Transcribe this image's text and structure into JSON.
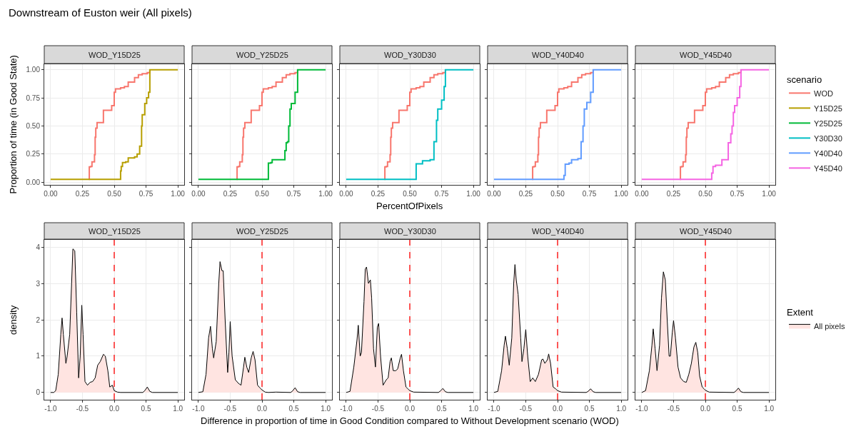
{
  "chart_data": [
    {
      "type": "step",
      "title": "WOD_Y15D25",
      "annotations": [
        "Downstream of Euston weir (All pixels)"
      ],
      "ylabel": "Proportion of time (in Good State)",
      "legend": "right",
      "legend_title": "scenario",
      "grid": true,
      "xlim": [
        -0.05,
        1.05
      ],
      "ylim": [
        -0.024,
        1.049
      ],
      "xticks": [
        {
          "value": 0,
          "label": "0.00"
        },
        {
          "value": 0.25,
          "label": "0.25"
        },
        {
          "value": 0.5,
          "label": "0.50"
        },
        {
          "value": 0.75,
          "label": "0.75"
        },
        {
          "value": 1,
          "label": "1.00"
        }
      ],
      "yticks": [
        {
          "value": 0,
          "label": "0.00"
        },
        {
          "value": 0.25,
          "label": "0.25"
        },
        {
          "value": 0.5,
          "label": "0.50"
        },
        {
          "value": 0.75,
          "label": "0.75"
        },
        {
          "value": 1,
          "label": "1.00"
        }
      ],
      "series": [
        {
          "name": "WOD",
          "color": "#f8766d",
          "x": [
            0.3,
            0.304,
            0.315,
            0.325,
            0.345,
            0.35,
            0.355,
            0.365,
            0.415,
            0.48,
            0.5,
            0.51,
            0.55,
            0.58,
            0.61,
            0.66,
            0.69,
            0.72,
            0.76,
            0.78
          ],
          "values": [
            0.025,
            0.136,
            0.14,
            0.18,
            0.245,
            0.4,
            0.48,
            0.53,
            0.64,
            0.68,
            0.8,
            0.83,
            0.84,
            0.85,
            0.89,
            0.93,
            0.955,
            0.965,
            0.975,
            1.0
          ]
        },
        {
          "name": "Y15D25",
          "color": "#b79f00",
          "x": [
            0,
            0.55,
            0.555,
            0.565,
            0.59,
            0.61,
            0.66,
            0.68,
            0.7,
            0.715,
            0.72,
            0.74,
            0.755,
            0.77,
            0.78,
            1.0
          ],
          "values": [
            0.025,
            0.1,
            0.14,
            0.175,
            0.18,
            0.215,
            0.225,
            0.25,
            0.32,
            0.5,
            0.6,
            0.7,
            0.75,
            0.8,
            1.0,
            1.0
          ]
        }
      ]
    },
    {
      "type": "step",
      "title": "WOD_Y25D25",
      "legend": "right",
      "tick_labels": "x",
      "grid": true,
      "xlim": [
        -0.05,
        1.05
      ],
      "ylim": [
        -0.024,
        1.049
      ],
      "xticks": [
        {
          "value": 0,
          "label": "0.00"
        },
        {
          "value": 0.25,
          "label": "0.25"
        },
        {
          "value": 0.5,
          "label": "0.50"
        },
        {
          "value": 0.75,
          "label": "0.75"
        },
        {
          "value": 1,
          "label": "1.00"
        }
      ],
      "yticks": [
        {
          "value": 0,
          "label": "0.00"
        },
        {
          "value": 0.25,
          "label": "0.25"
        },
        {
          "value": 0.5,
          "label": "0.50"
        },
        {
          "value": 0.75,
          "label": "0.75"
        },
        {
          "value": 1,
          "label": "1.00"
        }
      ],
      "series": [
        {
          "name": "WOD",
          "color": "#f8766d",
          "x": [
            0.3,
            0.304,
            0.315,
            0.325,
            0.345,
            0.35,
            0.355,
            0.365,
            0.415,
            0.48,
            0.5,
            0.51,
            0.55,
            0.58,
            0.61,
            0.66,
            0.69,
            0.72,
            0.76,
            0.78
          ],
          "values": [
            0.025,
            0.136,
            0.14,
            0.18,
            0.245,
            0.4,
            0.48,
            0.53,
            0.64,
            0.68,
            0.8,
            0.83,
            0.84,
            0.85,
            0.89,
            0.93,
            0.955,
            0.965,
            0.975,
            1.0
          ]
        },
        {
          "name": "Y25D25",
          "color": "#00ba38",
          "x": [
            0,
            0.55,
            0.57,
            0.58,
            0.68,
            0.69,
            0.7,
            0.71,
            0.72,
            0.73,
            0.76,
            0.78,
            1.0
          ],
          "values": [
            0.025,
            0.17,
            0.175,
            0.2,
            0.28,
            0.35,
            0.36,
            0.5,
            0.65,
            0.7,
            0.8,
            1.0,
            1.0
          ]
        }
      ]
    },
    {
      "type": "step",
      "title": "WOD_Y30D30",
      "xlabel": "PercentOfPixels",
      "legend": "right",
      "tick_labels": "x",
      "grid": true,
      "xlim": [
        -0.05,
        1.05
      ],
      "ylim": [
        -0.024,
        1.049
      ],
      "xticks": [
        {
          "value": 0,
          "label": "0.00"
        },
        {
          "value": 0.25,
          "label": "0.25"
        },
        {
          "value": 0.5,
          "label": "0.50"
        },
        {
          "value": 0.75,
          "label": "0.75"
        },
        {
          "value": 1,
          "label": "1.00"
        }
      ],
      "yticks": [
        {
          "value": 0,
          "label": "0.00"
        },
        {
          "value": 0.25,
          "label": "0.25"
        },
        {
          "value": 0.5,
          "label": "0.50"
        },
        {
          "value": 0.75,
          "label": "0.75"
        },
        {
          "value": 1,
          "label": "1.00"
        }
      ],
      "series": [
        {
          "name": "WOD",
          "color": "#f8766d",
          "x": [
            0.3,
            0.304,
            0.315,
            0.325,
            0.345,
            0.35,
            0.355,
            0.365,
            0.415,
            0.48,
            0.5,
            0.51,
            0.55,
            0.58,
            0.61,
            0.66,
            0.69,
            0.72,
            0.76,
            0.78
          ],
          "values": [
            0.025,
            0.136,
            0.14,
            0.18,
            0.245,
            0.4,
            0.48,
            0.53,
            0.64,
            0.68,
            0.8,
            0.83,
            0.84,
            0.85,
            0.89,
            0.93,
            0.955,
            0.965,
            0.975,
            1.0
          ]
        },
        {
          "name": "Y30D30",
          "color": "#00bfc4",
          "x": [
            0,
            0.55,
            0.6,
            0.66,
            0.69,
            0.71,
            0.72,
            0.75,
            0.77,
            0.78,
            1.0
          ],
          "values": [
            0.025,
            0.163,
            0.19,
            0.2,
            0.36,
            0.55,
            0.65,
            0.73,
            0.85,
            1.0,
            1.0
          ]
        }
      ]
    },
    {
      "type": "step",
      "title": "WOD_Y40D40",
      "legend": "right",
      "tick_labels": "x",
      "grid": true,
      "xlim": [
        -0.05,
        1.05
      ],
      "ylim": [
        -0.024,
        1.049
      ],
      "xticks": [
        {
          "value": 0,
          "label": "0.00"
        },
        {
          "value": 0.25,
          "label": "0.25"
        },
        {
          "value": 0.5,
          "label": "0.50"
        },
        {
          "value": 0.75,
          "label": "0.75"
        },
        {
          "value": 1,
          "label": "1.00"
        }
      ],
      "yticks": [
        {
          "value": 0,
          "label": "0.00"
        },
        {
          "value": 0.25,
          "label": "0.25"
        },
        {
          "value": 0.5,
          "label": "0.50"
        },
        {
          "value": 0.75,
          "label": "0.75"
        },
        {
          "value": 1,
          "label": "1.00"
        }
      ],
      "series": [
        {
          "name": "WOD",
          "color": "#f8766d",
          "x": [
            0.3,
            0.304,
            0.315,
            0.325,
            0.345,
            0.35,
            0.355,
            0.365,
            0.415,
            0.48,
            0.5,
            0.51,
            0.55,
            0.58,
            0.61,
            0.66,
            0.69,
            0.72,
            0.76,
            0.78
          ],
          "values": [
            0.025,
            0.136,
            0.14,
            0.18,
            0.245,
            0.4,
            0.48,
            0.53,
            0.64,
            0.68,
            0.8,
            0.83,
            0.84,
            0.85,
            0.89,
            0.93,
            0.955,
            0.965,
            0.975,
            1.0
          ]
        },
        {
          "name": "Y40D40",
          "color": "#619cff",
          "x": [
            0,
            0.55,
            0.56,
            0.59,
            0.61,
            0.66,
            0.685,
            0.7,
            0.71,
            0.73,
            0.76,
            0.78,
            1.0
          ],
          "values": [
            0.025,
            0.06,
            0.16,
            0.17,
            0.2,
            0.21,
            0.36,
            0.5,
            0.65,
            0.71,
            0.8,
            1.0,
            1.0
          ]
        }
      ]
    },
    {
      "type": "step",
      "title": "WOD_Y45D40",
      "legend": "right",
      "tick_labels": "x",
      "grid": true,
      "xlim": [
        -0.05,
        1.05
      ],
      "ylim": [
        -0.024,
        1.049
      ],
      "xticks": [
        {
          "value": 0,
          "label": "0.00"
        },
        {
          "value": 0.25,
          "label": "0.25"
        },
        {
          "value": 0.5,
          "label": "0.50"
        },
        {
          "value": 0.75,
          "label": "0.75"
        },
        {
          "value": 1,
          "label": "1.00"
        }
      ],
      "yticks": [
        {
          "value": 0,
          "label": "0.00"
        },
        {
          "value": 0.25,
          "label": "0.25"
        },
        {
          "value": 0.5,
          "label": "0.50"
        },
        {
          "value": 0.75,
          "label": "0.75"
        },
        {
          "value": 1,
          "label": "1.00"
        }
      ],
      "series": [
        {
          "name": "WOD",
          "color": "#f8766d",
          "x": [
            0.3,
            0.304,
            0.315,
            0.325,
            0.345,
            0.35,
            0.355,
            0.365,
            0.415,
            0.48,
            0.5,
            0.51,
            0.55,
            0.58,
            0.61,
            0.66,
            0.69,
            0.72,
            0.76,
            0.78
          ],
          "values": [
            0.025,
            0.136,
            0.14,
            0.18,
            0.245,
            0.4,
            0.48,
            0.53,
            0.64,
            0.68,
            0.8,
            0.83,
            0.84,
            0.85,
            0.89,
            0.93,
            0.955,
            0.965,
            0.975,
            1.0
          ]
        },
        {
          "name": "Y45D40",
          "color": "#f564e3",
          "x": [
            0,
            0.55,
            0.56,
            0.58,
            0.63,
            0.68,
            0.7,
            0.71,
            0.72,
            0.73,
            0.75,
            0.77,
            0.78,
            1.0
          ],
          "values": [
            0.025,
            0.08,
            0.14,
            0.15,
            0.2,
            0.35,
            0.43,
            0.5,
            0.62,
            0.68,
            0.75,
            0.85,
            1.0,
            1.0
          ]
        }
      ]
    },
    {
      "type": "area",
      "title": "WOD_Y15D25",
      "ylabel": "density",
      "legend": "right",
      "legend_title": "Extent",
      "grid": true,
      "xlim": [
        -1.1,
        1.1
      ],
      "ylim": [
        -0.2,
        4.2
      ],
      "xticks": [
        {
          "value": -1,
          "label": "-1.0"
        },
        {
          "value": -0.5,
          "label": "-0.5"
        },
        {
          "value": 0,
          "label": "0.0"
        },
        {
          "value": 0.5,
          "label": "0.5"
        },
        {
          "value": 1,
          "label": "1.0"
        }
      ],
      "yticks": [
        0,
        1,
        2,
        3,
        4
      ],
      "ref_lines": [
        {
          "axis": "x",
          "value": 0,
          "color": "#ff0000",
          "line_style": "dashed"
        }
      ],
      "series": [
        {
          "name": "All pixels",
          "color": "#ffe4e1",
          "x": [
            -1,
            -0.95,
            -0.92,
            -0.88,
            -0.84,
            -0.82,
            -0.8,
            -0.76,
            -0.74,
            -0.7,
            -0.67,
            -0.65,
            -0.62,
            -0.59,
            -0.56,
            -0.535,
            -0.51,
            -0.49,
            -0.46,
            -0.42,
            -0.38,
            -0.34,
            -0.3,
            -0.26,
            -0.22,
            -0.17,
            -0.14,
            -0.1,
            -0.07,
            -0.03,
            0,
            0.05,
            0.1,
            0.45,
            0.48,
            0.52,
            0.56,
            0.6,
            1
          ],
          "values": [
            0,
            0,
            0.05,
            0.5,
            1.6,
            2.05,
            1.6,
            0.8,
            1.0,
            1.6,
            3.0,
            3.95,
            3.9,
            2.2,
            0.4,
            1.0,
            2.4,
            1.6,
            0.3,
            0.2,
            0.28,
            0.3,
            0.4,
            0.75,
            0.85,
            1.05,
            1.0,
            0.6,
            0.15,
            0.2,
            0.05,
            0.01,
            0,
            0,
            0.05,
            0.15,
            0.03,
            0,
            0
          ]
        }
      ]
    },
    {
      "type": "area",
      "title": "WOD_Y25D25",
      "tick_labels": "x",
      "grid": true,
      "xlim": [
        -1.1,
        1.1
      ],
      "ylim": [
        -0.2,
        4.2
      ],
      "xticks": [
        {
          "value": -1,
          "label": "-1.0"
        },
        {
          "value": -0.5,
          "label": "-0.5"
        },
        {
          "value": 0,
          "label": "0.0"
        },
        {
          "value": 0.5,
          "label": "0.5"
        },
        {
          "value": 1,
          "label": "1.0"
        }
      ],
      "yticks": [
        0,
        1,
        2,
        3,
        4
      ],
      "ref_lines": [
        {
          "axis": "x",
          "value": 0,
          "color": "#ff0000",
          "line_style": "dashed"
        }
      ],
      "series": [
        {
          "color": "#ffe4e1",
          "x": [
            -1,
            -0.93,
            -0.88,
            -0.84,
            -0.81,
            -0.78,
            -0.76,
            -0.72,
            -0.68,
            -0.66,
            -0.63,
            -0.61,
            -0.58,
            -0.54,
            -0.52,
            -0.5,
            -0.47,
            -0.42,
            -0.37,
            -0.33,
            -0.29,
            -0.27,
            -0.24,
            -0.21,
            -0.17,
            -0.14,
            -0.11,
            -0.07,
            -0.03,
            0,
            0.05,
            0.1,
            0.22,
            0.45,
            0.48,
            0.52,
            0.56,
            0.6,
            1
          ],
          "values": [
            0,
            0.02,
            0.5,
            1.5,
            1.82,
            1.2,
            0.95,
            1.4,
            3.0,
            3.6,
            3.35,
            3.35,
            2.0,
            0.55,
            1.1,
            1.95,
            1.0,
            0.35,
            0.25,
            0.2,
            0.7,
            0.97,
            0.7,
            0.55,
            0.95,
            1.13,
            0.9,
            0.2,
            0.12,
            0.07,
            0.01,
            0,
            0.01,
            0,
            0.04,
            0.13,
            0.02,
            0,
            0
          ]
        }
      ]
    },
    {
      "type": "area",
      "title": "WOD_Y30D30",
      "xlabel": "Difference in proportion of time in Good Condition compared to Without Development scenario (WOD)",
      "tick_labels": "x",
      "grid": true,
      "xlim": [
        -1.1,
        1.1
      ],
      "ylim": [
        -0.2,
        4.2
      ],
      "xticks": [
        {
          "value": -1,
          "label": "-1.0"
        },
        {
          "value": -0.5,
          "label": "-0.5"
        },
        {
          "value": 0,
          "label": "0.0"
        },
        {
          "value": 0.5,
          "label": "0.5"
        },
        {
          "value": 1,
          "label": "1.0"
        }
      ],
      "yticks": [
        0,
        1,
        2,
        3,
        4
      ],
      "ref_lines": [
        {
          "axis": "x",
          "value": 0,
          "color": "#ff0000",
          "line_style": "dashed"
        }
      ],
      "series": [
        {
          "color": "#ffe4e1",
          "x": [
            -1,
            -0.94,
            -0.88,
            -0.83,
            -0.81,
            -0.78,
            -0.76,
            -0.72,
            -0.7,
            -0.68,
            -0.65,
            -0.62,
            -0.6,
            -0.57,
            -0.54,
            -0.51,
            -0.49,
            -0.46,
            -0.42,
            -0.37,
            -0.34,
            -0.31,
            -0.29,
            -0.26,
            -0.22,
            -0.19,
            -0.15,
            -0.13,
            -0.1,
            -0.06,
            -0.03,
            0,
            0.06,
            0.45,
            0.48,
            0.52,
            0.56,
            0.6,
            1
          ],
          "values": [
            0,
            0.03,
            0.7,
            1.45,
            1.85,
            1.0,
            1.1,
            2.5,
            3.4,
            3.45,
            3.0,
            3.1,
            2.6,
            1.2,
            0.7,
            1.8,
            1.9,
            1.0,
            0.2,
            0.35,
            0.4,
            0.85,
            0.95,
            0.6,
            0.6,
            0.65,
            0.95,
            1.05,
            0.6,
            0.15,
            0.1,
            0.05,
            0.01,
            0,
            0.04,
            0.11,
            0.02,
            0,
            0
          ]
        }
      ]
    },
    {
      "type": "area",
      "title": "WOD_Y40D40",
      "tick_labels": "x",
      "grid": true,
      "xlim": [
        -1.1,
        1.1
      ],
      "ylim": [
        -0.2,
        4.2
      ],
      "xticks": [
        {
          "value": -1,
          "label": "-1.0"
        },
        {
          "value": -0.5,
          "label": "-0.5"
        },
        {
          "value": 0,
          "label": "0.0"
        },
        {
          "value": 0.5,
          "label": "0.5"
        },
        {
          "value": 1,
          "label": "1.0"
        }
      ],
      "yticks": [
        0,
        1,
        2,
        3,
        4
      ],
      "ref_lines": [
        {
          "axis": "x",
          "value": 0,
          "color": "#ff0000",
          "line_style": "dashed"
        }
      ],
      "series": [
        {
          "color": "#ffe4e1",
          "x": [
            -1,
            -0.94,
            -0.88,
            -0.84,
            -0.82,
            -0.79,
            -0.76,
            -0.72,
            -0.69,
            -0.67,
            -0.65,
            -0.62,
            -0.58,
            -0.56,
            -0.53,
            -0.5,
            -0.47,
            -0.43,
            -0.39,
            -0.35,
            -0.3,
            -0.25,
            -0.23,
            -0.2,
            -0.16,
            -0.14,
            -0.11,
            -0.07,
            -0.03,
            0,
            0.06,
            0.45,
            0.48,
            0.52,
            0.56,
            0.6,
            1
          ],
          "values": [
            0,
            0.03,
            0.6,
            1.3,
            1.55,
            1.2,
            0.75,
            1.5,
            3.0,
            3.52,
            3.1,
            2.7,
            1.5,
            0.85,
            1.2,
            1.73,
            1.0,
            0.3,
            0.4,
            0.3,
            0.5,
            0.9,
            0.92,
            0.8,
            0.9,
            1.06,
            0.8,
            0.15,
            0.1,
            0.05,
            0.01,
            0,
            0.03,
            0.1,
            0.02,
            0,
            0
          ]
        }
      ]
    },
    {
      "type": "area",
      "title": "WOD_Y45D40",
      "tick_labels": "x",
      "grid": true,
      "xlim": [
        -1.1,
        1.1
      ],
      "ylim": [
        -0.2,
        4.2
      ],
      "xticks": [
        {
          "value": -1,
          "label": "-1.0"
        },
        {
          "value": -0.5,
          "label": "-0.5"
        },
        {
          "value": 0,
          "label": "0.0"
        },
        {
          "value": 0.5,
          "label": "0.5"
        },
        {
          "value": 1,
          "label": "1.0"
        }
      ],
      "yticks": [
        0,
        1,
        2,
        3,
        4
      ],
      "ref_lines": [
        {
          "axis": "x",
          "value": 0,
          "color": "#ff0000",
          "line_style": "dashed"
        }
      ],
      "series": [
        {
          "color": "#ffe4e1",
          "x": [
            -1,
            -0.94,
            -0.88,
            -0.84,
            -0.82,
            -0.79,
            -0.76,
            -0.72,
            -0.69,
            -0.66,
            -0.63,
            -0.6,
            -0.57,
            -0.55,
            -0.52,
            -0.5,
            -0.47,
            -0.43,
            -0.39,
            -0.34,
            -0.3,
            -0.26,
            -0.22,
            -0.18,
            -0.15,
            -0.12,
            -0.09,
            -0.05,
            -0.02,
            0,
            0.06,
            0.45,
            0.48,
            0.52,
            0.56,
            0.6,
            1
          ],
          "values": [
            0,
            0.05,
            0.6,
            1.3,
            1.75,
            1.2,
            0.6,
            1.3,
            2.6,
            3.32,
            3.1,
            2.0,
            1.0,
            1.0,
            1.65,
            1.98,
            1.5,
            0.7,
            0.4,
            0.3,
            0.28,
            0.5,
            0.8,
            1.25,
            1.38,
            1.1,
            0.45,
            0.15,
            0.1,
            0.06,
            0.01,
            0,
            0.04,
            0.12,
            0.02,
            0,
            0
          ]
        }
      ]
    }
  ]
}
